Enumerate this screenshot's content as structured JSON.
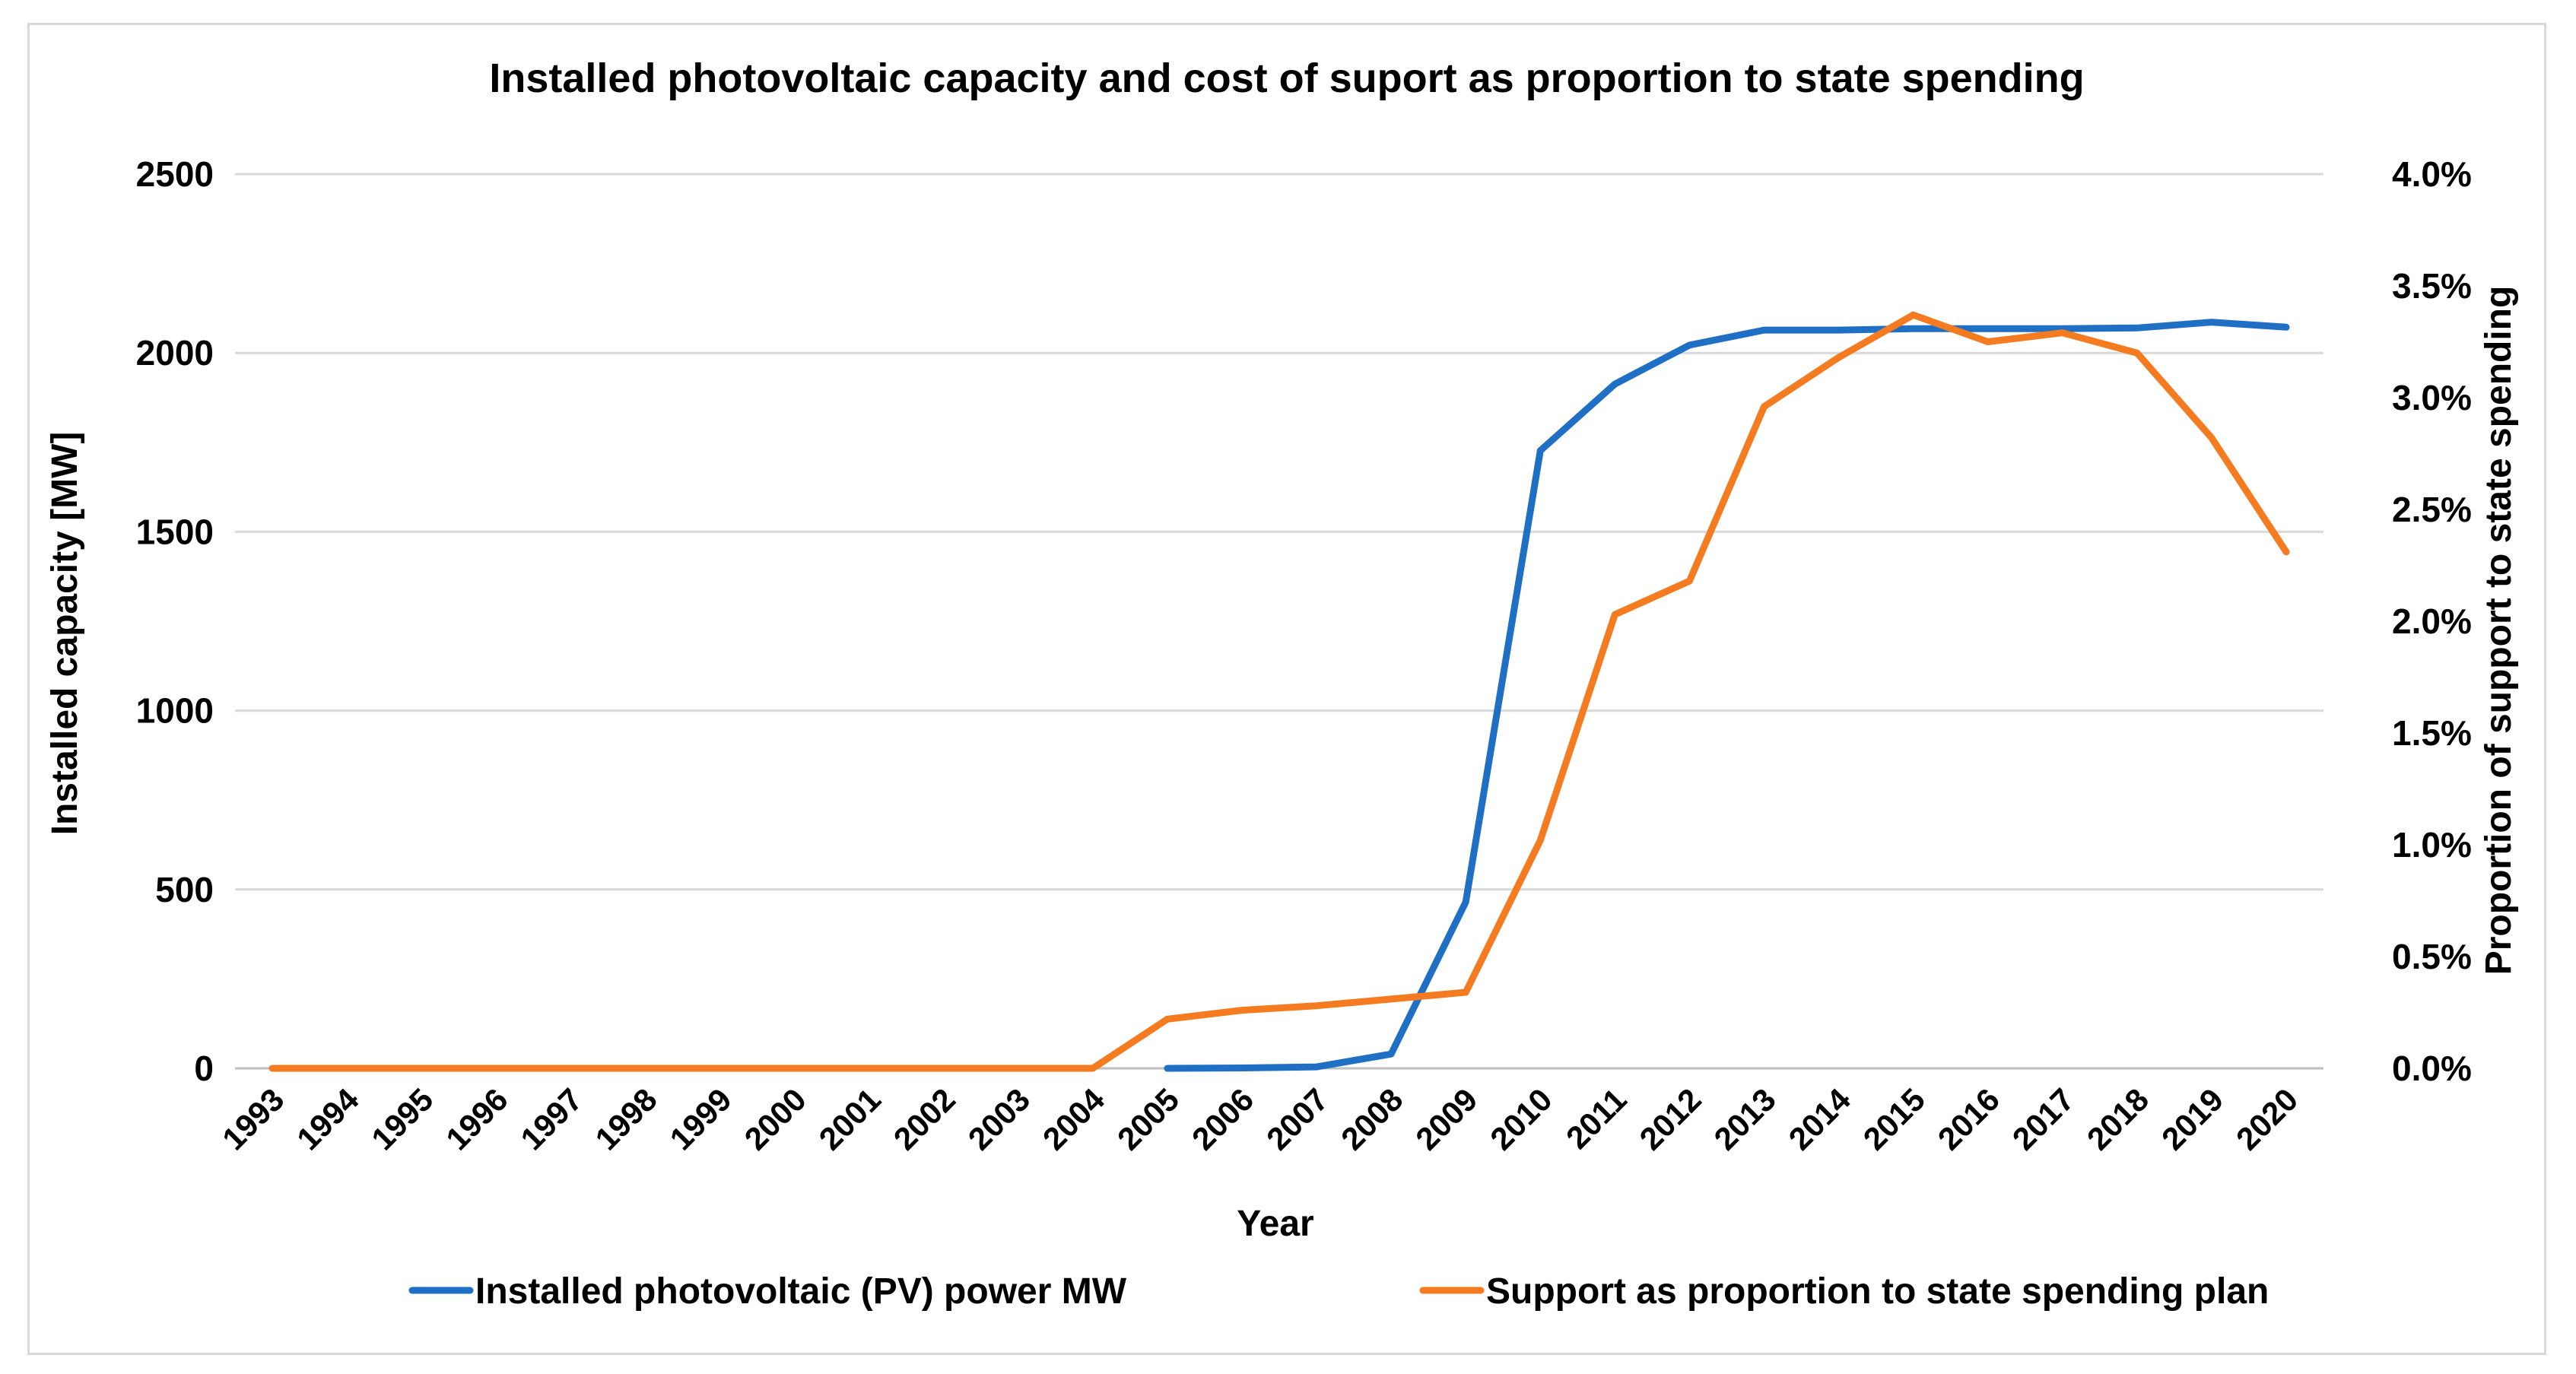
{
  "chart_data": {
    "type": "line",
    "title": "Installed photovoltaic capacity and cost of suport as proportion to state spending",
    "xlabel": "Year",
    "ylabel_left": "Installed capacity [MW]",
    "ylabel_right": "Proportion of support to state spending",
    "ylim_left": [
      0,
      2500
    ],
    "ylim_right": [
      0,
      0.04
    ],
    "yticks_left": [
      "0",
      "500",
      "1000",
      "1500",
      "2000",
      "2500"
    ],
    "yticks_right": [
      "0.0%",
      "0.5%",
      "1.0%",
      "1.5%",
      "2.0%",
      "2.5%",
      "3.0%",
      "3.5%",
      "4.0%"
    ],
    "grid": true,
    "legend_position": "bottom",
    "categories": [
      "1993",
      "1994",
      "1995",
      "1996",
      "1997",
      "1998",
      "1999",
      "2000",
      "2001",
      "2002",
      "2003",
      "2004",
      "2005",
      "2006",
      "2007",
      "2008",
      "2009",
      "2010",
      "2011",
      "2012",
      "2013",
      "2014",
      "2015",
      "2016",
      "2017",
      "2018",
      "2019",
      "2020"
    ],
    "series": [
      {
        "name": "Installed photovoltaic (PV) power MW",
        "axis": "left",
        "color": "#1f6fc5",
        "values": [
          null,
          null,
          null,
          null,
          null,
          null,
          null,
          null,
          null,
          null,
          null,
          null,
          0,
          1,
          4,
          40,
          465,
          1727,
          1913,
          2022,
          2064,
          2064,
          2068,
          2068,
          2068,
          2070,
          2086,
          2072
        ]
      },
      {
        "name": "Support as proportion to state spending plan",
        "axis": "right",
        "color": "#f47b20",
        "values": [
          0,
          0,
          0,
          0,
          0,
          0,
          0,
          0,
          0,
          0,
          0,
          0,
          0.0022,
          0.0026,
          0.0028,
          0.0031,
          0.0034,
          0.0102,
          0.0203,
          0.0218,
          0.0296,
          0.0318,
          0.0337,
          0.0325,
          0.0329,
          0.032,
          0.0282,
          0.0231
        ]
      }
    ]
  }
}
